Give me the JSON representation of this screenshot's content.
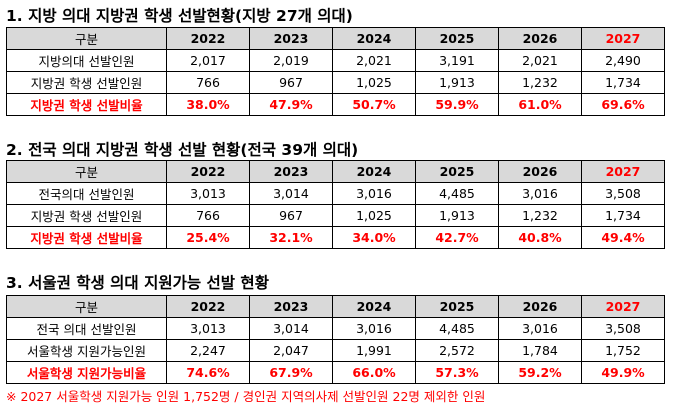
{
  "years": [
    "2022",
    "2023",
    "2024",
    "2025",
    "2026",
    "2027"
  ],
  "sections": [
    {
      "title": "1. 지방 의대 지방권 학생 선발현황(지방 27개 의대)",
      "header_label": "구분",
      "rows": [
        {
          "label": "지방의대 선발인원",
          "values": [
            "2,017",
            "2,019",
            "2,021",
            "3,191",
            "2,021",
            "2,490"
          ]
        },
        {
          "label": "지방권 학생 선발인원",
          "values": [
            "766",
            "967",
            "1,025",
            "1,913",
            "1,232",
            "1,734"
          ]
        },
        {
          "label": "지방권 학생 선발비율",
          "values": [
            "38.0%",
            "47.9%",
            "50.7%",
            "59.9%",
            "61.0%",
            "69.6%"
          ]
        }
      ]
    },
    {
      "title": "2. 전국 의대 지방권 학생 선발 현황(전국 39개 의대)",
      "header_label": "구분",
      "rows": [
        {
          "label": "전국의대 선발인원",
          "values": [
            "3,013",
            "3,014",
            "3,016",
            "4,485",
            "3,016",
            "3,508"
          ]
        },
        {
          "label": "지방권 학생 선발인원",
          "values": [
            "766",
            "967",
            "1,025",
            "1,913",
            "1,232",
            "1,734"
          ]
        },
        {
          "label": "지방권 학생 선발비율",
          "values": [
            "25.4%",
            "32.1%",
            "34.0%",
            "42.7%",
            "40.8%",
            "49.4%"
          ]
        }
      ]
    },
    {
      "title": "3. 서울권 학생 의대 지원가능 선발 현황",
      "header_label": "구분",
      "rows": [
        {
          "label": "전국 의대 선발인원",
          "values": [
            "3,013",
            "3,014",
            "3,016",
            "4,485",
            "3,016",
            "3,508"
          ]
        },
        {
          "label": "서울학생 지원가능인원",
          "values": [
            "2,247",
            "2,047",
            "1,991",
            "2,572",
            "1,784",
            "1,752"
          ]
        },
        {
          "label": "서울학생 지원가능비율",
          "values": [
            "74.6%",
            "67.9%",
            "66.0%",
            "57.3%",
            "59.2%",
            "49.9%"
          ]
        }
      ]
    }
  ],
  "footnote": "※ 2027 서울학생 지원가능 인원 1,752명 / 경인권 지역의사제 선발인원 22명 제외한 인원",
  "colors": {
    "header_bg": "#d9d9d9",
    "highlight_red": "#ff0000",
    "border": "#000000"
  }
}
